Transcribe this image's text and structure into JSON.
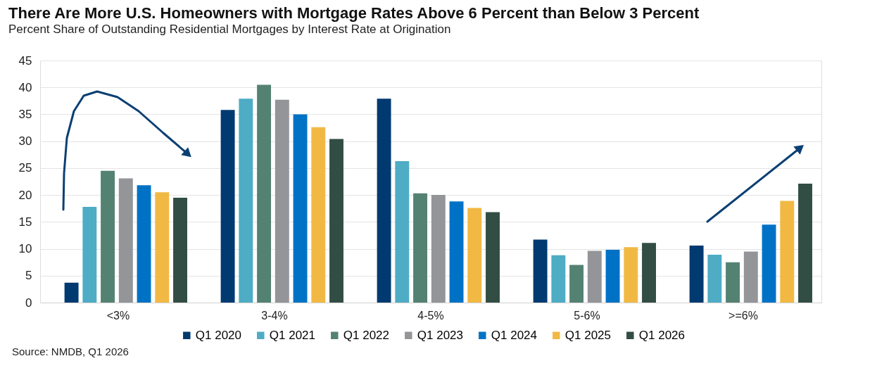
{
  "chart_data": {
    "type": "bar",
    "title": "There Are More U.S. Homeowners with Mortgage Rates Above 6 Percent than Below 3 Percent",
    "subtitle": "Percent Share of Outstanding Residential Mortgages by Interest Rate at Origination",
    "categories": [
      "<3%",
      "3-4%",
      "4-5%",
      "5-6%",
      ">=6%"
    ],
    "series": [
      {
        "name": "Q1 2020",
        "color": "#003a70",
        "values": [
          3.7,
          35.8,
          37.9,
          11.7,
          10.6
        ]
      },
      {
        "name": "Q1 2021",
        "color": "#4eacc5",
        "values": [
          17.8,
          37.9,
          26.3,
          8.8,
          8.9
        ]
      },
      {
        "name": "Q1 2022",
        "color": "#548272",
        "values": [
          24.5,
          40.5,
          20.3,
          7.0,
          7.5
        ]
      },
      {
        "name": "Q1 2023",
        "color": "#939598",
        "values": [
          23.1,
          37.7,
          20.0,
          9.6,
          9.5
        ]
      },
      {
        "name": "Q1 2024",
        "color": "#0072c6",
        "values": [
          21.8,
          35.0,
          18.8,
          9.8,
          14.5
        ]
      },
      {
        "name": "Q1 2025",
        "color": "#f1b944",
        "values": [
          20.5,
          32.6,
          17.6,
          10.3,
          18.9
        ]
      },
      {
        "name": "Q1 2026",
        "color": "#324d44",
        "values": [
          19.5,
          30.4,
          16.8,
          11.1,
          22.1
        ]
      }
    ],
    "ylim": [
      0,
      45
    ],
    "yticks": [
      0,
      5,
      10,
      15,
      20,
      25,
      30,
      35,
      40,
      45
    ],
    "grid": "y",
    "legend": "bottom",
    "annotations": [
      "Source: NMDB, Q1 2026"
    ]
  }
}
